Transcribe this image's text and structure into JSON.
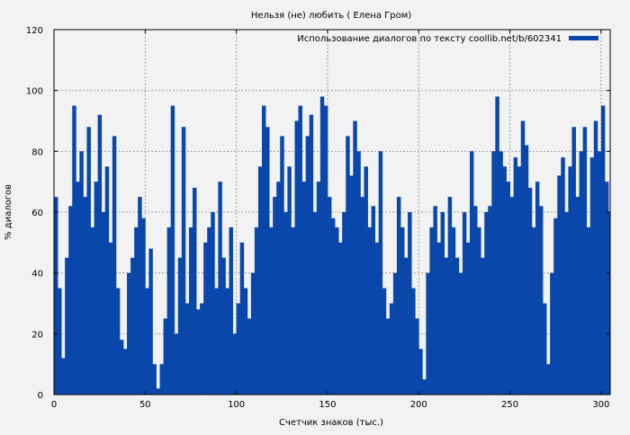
{
  "chart_data": {
    "type": "area",
    "title": "Нельзя (не) любить ( Елена Гром)",
    "xlabel": "Счетчик знаков (тыс.)",
    "ylabel": "% диалогов",
    "xlim": [
      0,
      305
    ],
    "ylim": [
      0,
      120
    ],
    "x_ticks": [
      0,
      50,
      100,
      150,
      200,
      250,
      300
    ],
    "y_ticks": [
      0,
      20,
      40,
      60,
      80,
      100,
      120
    ],
    "grid": true,
    "legend_position": "top-right",
    "series": [
      {
        "name": "Использование диалогов по тексту coollib.net/b/602341",
        "color": "#0a47aa",
        "x": [
          0,
          2,
          4,
          6,
          8,
          10,
          12,
          14,
          16,
          18,
          20,
          22,
          24,
          26,
          28,
          30,
          32,
          34,
          36,
          38,
          40,
          42,
          44,
          46,
          48,
          50,
          52,
          54,
          56,
          58,
          60,
          62,
          64,
          66,
          68,
          70,
          72,
          74,
          76,
          78,
          80,
          82,
          84,
          86,
          88,
          90,
          92,
          94,
          96,
          98,
          100,
          102,
          104,
          106,
          108,
          110,
          112,
          114,
          116,
          118,
          120,
          122,
          124,
          126,
          128,
          130,
          132,
          134,
          136,
          138,
          140,
          142,
          144,
          146,
          148,
          150,
          152,
          154,
          156,
          158,
          160,
          162,
          164,
          166,
          168,
          170,
          172,
          174,
          176,
          178,
          180,
          182,
          184,
          186,
          188,
          190,
          192,
          194,
          196,
          198,
          200,
          202,
          204,
          206,
          208,
          210,
          212,
          214,
          216,
          218,
          220,
          222,
          224,
          226,
          228,
          230,
          232,
          234,
          236,
          238,
          240,
          242,
          244,
          246,
          248,
          250,
          252,
          254,
          256,
          258,
          260,
          262,
          264,
          266,
          268,
          270,
          272,
          274,
          276,
          278,
          280,
          282,
          284,
          286,
          288,
          290,
          292,
          294,
          296,
          298,
          300,
          302,
          304
        ],
        "y": [
          65,
          35,
          12,
          45,
          62,
          95,
          70,
          80,
          65,
          88,
          55,
          70,
          92,
          60,
          75,
          50,
          85,
          35,
          18,
          15,
          40,
          45,
          55,
          65,
          58,
          35,
          48,
          10,
          2,
          10,
          25,
          55,
          95,
          20,
          45,
          88,
          30,
          55,
          68,
          28,
          30,
          50,
          55,
          60,
          35,
          70,
          45,
          35,
          55,
          20,
          30,
          50,
          35,
          25,
          40,
          55,
          75,
          95,
          88,
          55,
          65,
          70,
          85,
          60,
          75,
          55,
          90,
          95,
          70,
          85,
          92,
          60,
          70,
          98,
          95,
          65,
          58,
          55,
          50,
          60,
          85,
          72,
          90,
          80,
          65,
          75,
          55,
          62,
          50,
          80,
          35,
          25,
          30,
          40,
          65,
          55,
          45,
          60,
          35,
          25,
          15,
          5,
          40,
          55,
          62,
          50,
          60,
          45,
          65,
          55,
          45,
          40,
          60,
          50,
          80,
          62,
          55,
          45,
          60,
          62,
          80,
          98,
          80,
          75,
          70,
          65,
          78,
          75,
          90,
          82,
          68,
          55,
          70,
          62,
          30,
          10,
          40,
          58,
          72,
          78,
          60,
          75,
          88,
          65,
          80,
          88,
          55,
          78,
          90,
          80,
          95,
          70,
          60
        ]
      }
    ]
  }
}
